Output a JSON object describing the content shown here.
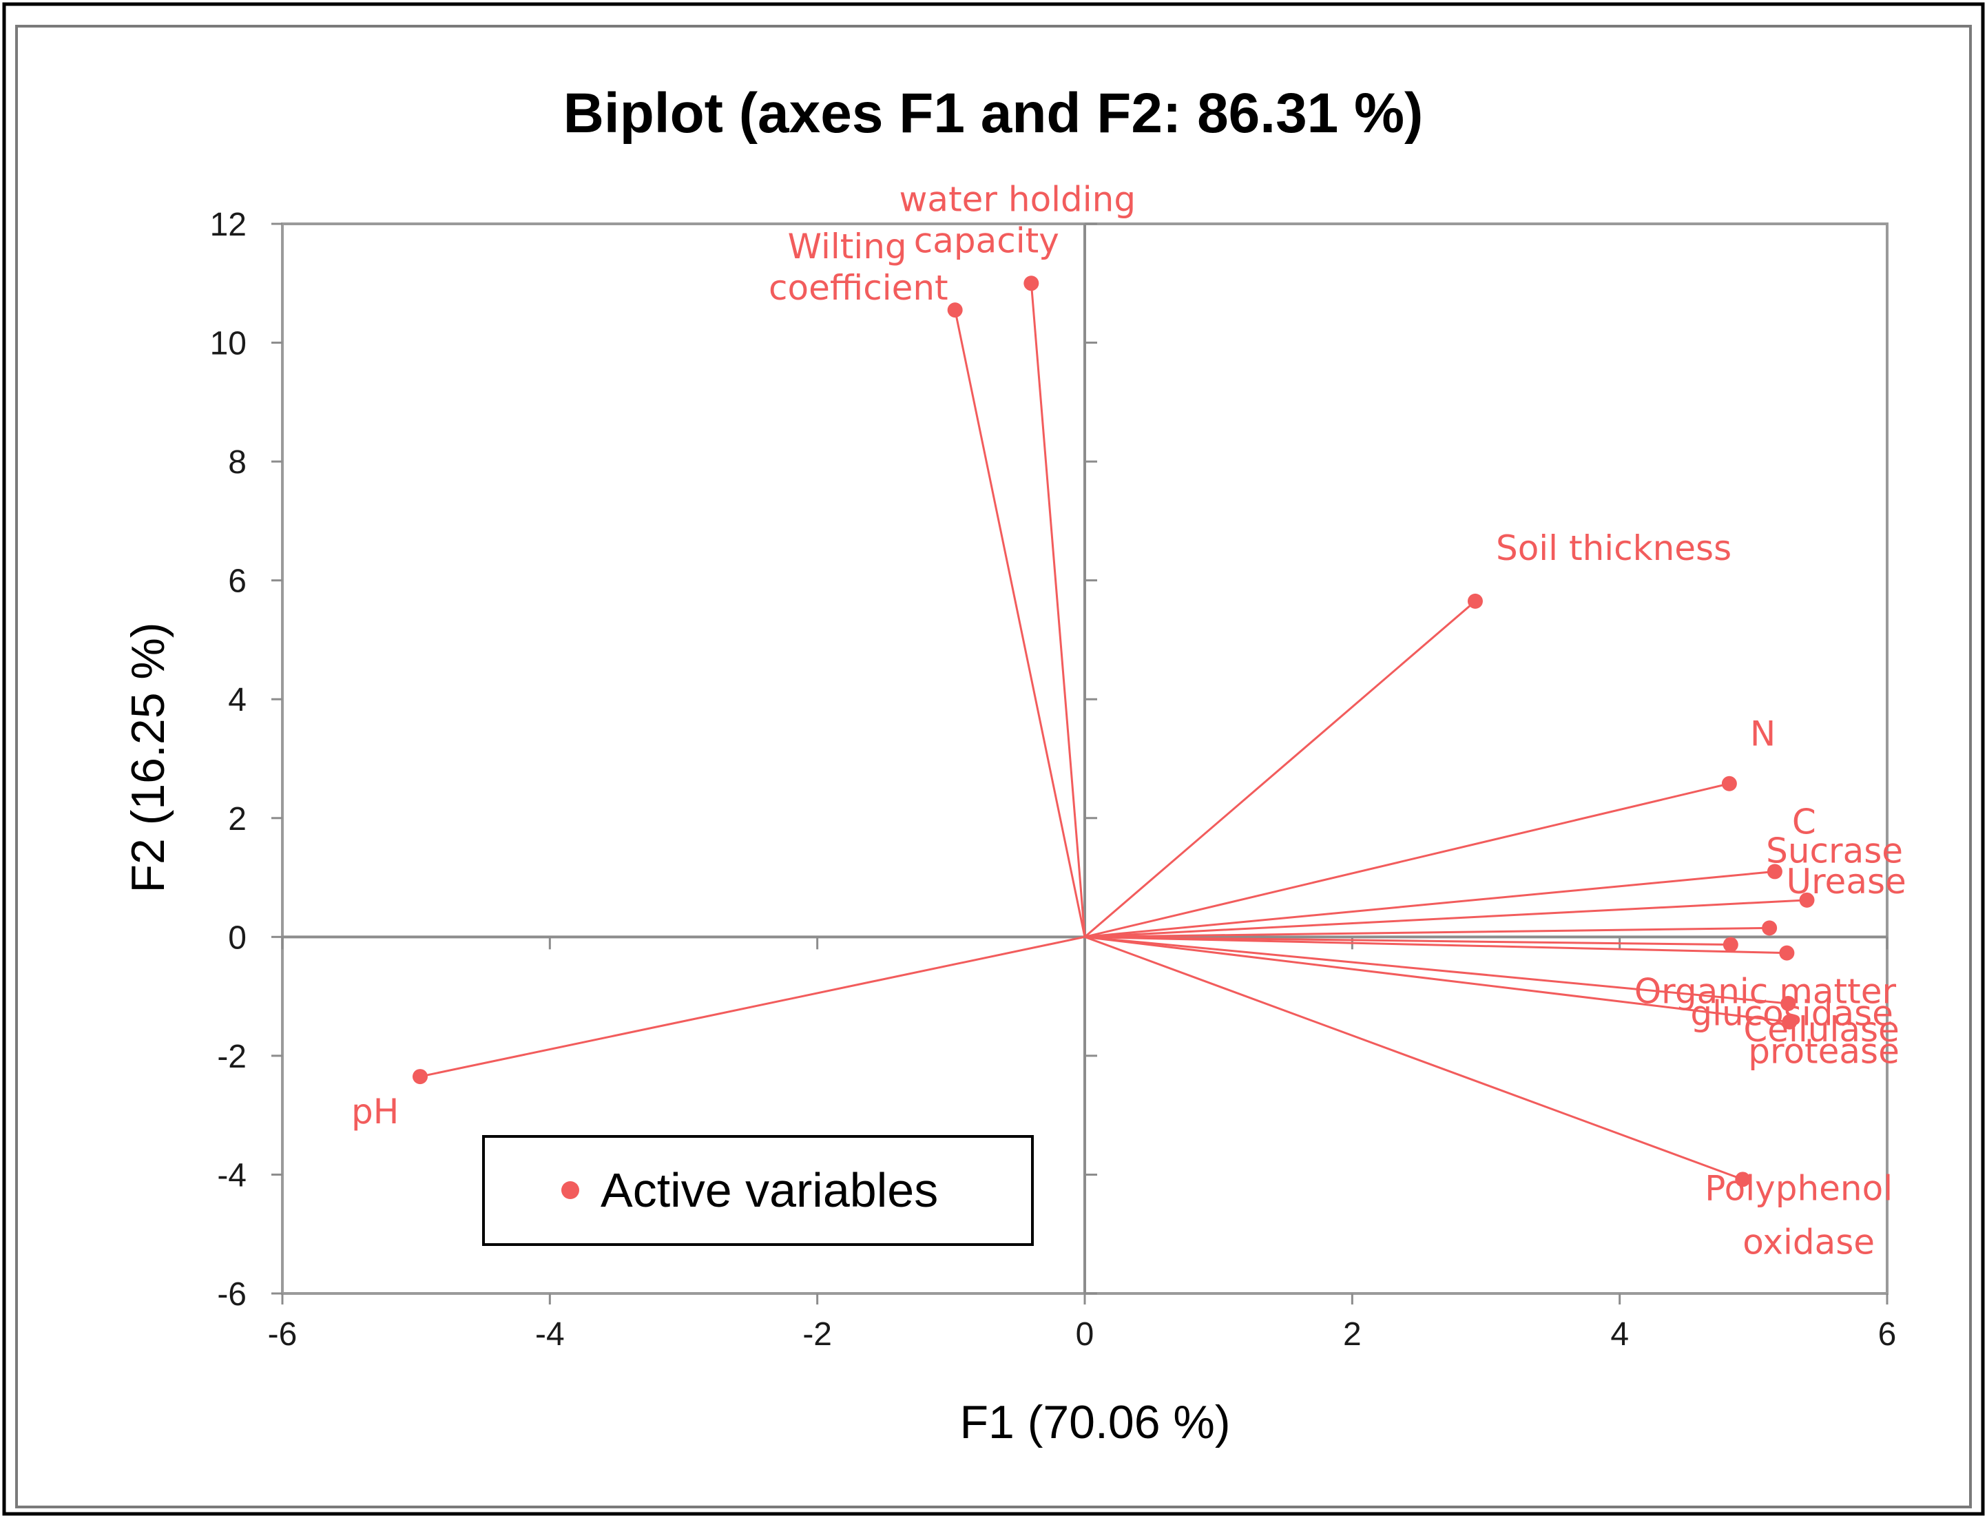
{
  "chart_data": {
    "type": "scatter",
    "subtype": "biplot",
    "title": "Biplot (axes F1 and F2: 86.31 %)",
    "xlabel": "F1 (70.06 %)",
    "ylabel": "F2 (16.25 %)",
    "xlim": [
      -6,
      6
    ],
    "ylim": [
      -6,
      12
    ],
    "xticks": [
      "-6",
      "-4",
      "-2",
      "0",
      "2",
      "4",
      "6"
    ],
    "yticks": [
      "-6",
      "-4",
      "-2",
      "0",
      "2",
      "4",
      "6",
      "8",
      "10",
      "12"
    ],
    "series_color": "#f25c5c",
    "legend": {
      "label": "Active variables",
      "position": "bottom-left"
    },
    "variables": [
      {
        "name": "water holding capacity",
        "label_lines": [
          "water holding",
          "capacity"
        ],
        "x": -0.4,
        "y": 11.0
      },
      {
        "name": "Wilting coefficient",
        "label_lines": [
          "Wilting",
          "coefficient"
        ],
        "x": -0.97,
        "y": 10.55
      },
      {
        "name": "Soil thickness",
        "label_lines": [
          "Soil thickness"
        ],
        "x": 2.92,
        "y": 5.65
      },
      {
        "name": "N",
        "label_lines": [
          "N"
        ],
        "x": 4.82,
        "y": 2.58
      },
      {
        "name": "C",
        "label_lines": [
          "C"
        ],
        "x": 5.16,
        "y": 1.1
      },
      {
        "name": "Sucrase",
        "label_lines": [
          "Sucrase"
        ],
        "x": 5.12,
        "y": 0.15
      },
      {
        "name": "Urease",
        "label_lines": [
          "Urease"
        ],
        "x": 5.4,
        "y": 0.62
      },
      {
        "name": "Organic matter",
        "label_lines": [
          "Organic matter"
        ],
        "x": 4.83,
        "y": -0.13
      },
      {
        "name": "glucosidase",
        "label_lines": [
          "glucosidase"
        ],
        "x": 5.25,
        "y": -0.27
      },
      {
        "name": "Cellulase",
        "label_lines": [
          "Cellulase"
        ],
        "x": 5.26,
        "y": -1.12
      },
      {
        "name": "protease",
        "label_lines": [
          "protease"
        ],
        "x": 5.27,
        "y": -1.43
      },
      {
        "name": "Polyphenol oxidase",
        "label_lines": [
          "Polyphenol",
          "oxidase"
        ],
        "x": 4.92,
        "y": -4.08
      },
      {
        "name": "pH",
        "label_lines": [
          "pH"
        ],
        "x": -4.97,
        "y": -2.35
      }
    ]
  }
}
